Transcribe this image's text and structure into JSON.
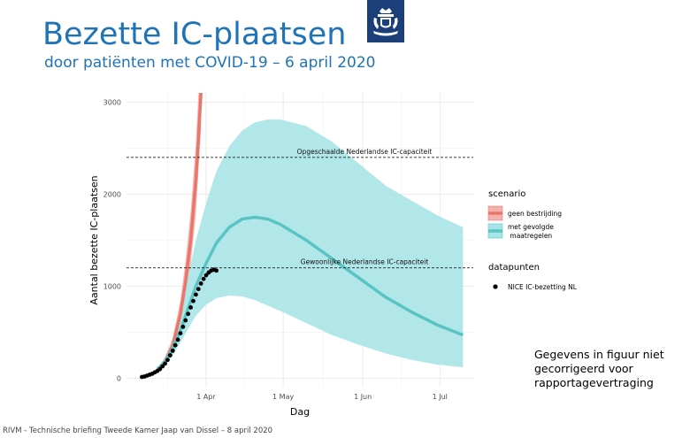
{
  "header": {
    "title": "Bezette IC-plaatsen",
    "subtitle": "door patiënten met COVID-19 – 6 april 2020"
  },
  "logo": {
    "icon": "crest-icon",
    "color": "#1c3f7a"
  },
  "chart_data": {
    "type": "line",
    "xlabel": "Dag",
    "ylabel": "Aantal bezette IC-plaatsen",
    "x_tick_labels": [
      "1 Apr",
      "1 May",
      "1 Jun",
      "1 Jul"
    ],
    "x_tick_dates": [
      "2020-04-01",
      "2020-05-01",
      "2020-06-01",
      "2020-07-01"
    ],
    "y_ticks": [
      0,
      1000,
      2000,
      3000
    ],
    "xlim": [
      "2020-03-01",
      "2020-07-14"
    ],
    "ylim": [
      -100,
      3100
    ],
    "grid": true,
    "reference_lines": [
      {
        "label": "Opgeschaalde Nederlandse IC-capaciteit",
        "y": 2400
      },
      {
        "label": "Gewoonlijke Nederlandse IC-capaciteit",
        "y": 1200
      }
    ],
    "legend": {
      "position": "right",
      "scenario_title": "scenario",
      "datapoints_title": "datapunten",
      "scenario_entries": [
        "geen bestrijding",
        "met gevolgde\n maatregelen"
      ],
      "datapoints_entry": "NICE IC-bezetting NL"
    },
    "series": [
      {
        "name": "geen bestrijding",
        "color": "#e8766d",
        "band_color": "#f3b2ad",
        "x": [
          "2020-03-13",
          "2020-03-16",
          "2020-03-19",
          "2020-03-22",
          "2020-03-24",
          "2020-03-26",
          "2020-03-28",
          "2020-03-29",
          "2020-03-30"
        ],
        "y": [
          90,
          180,
          360,
          700,
          1050,
          1500,
          2150,
          2600,
          3100
        ],
        "upper": [
          110,
          230,
          440,
          850,
          1280,
          1820,
          2550,
          3100,
          3100
        ],
        "lower": [
          75,
          150,
          300,
          580,
          870,
          1230,
          1780,
          2250,
          2700
        ]
      },
      {
        "name": "met gevolgde maatregelen",
        "color": "#5ac3c4",
        "band_color": "#a9e4e6",
        "x": [
          "2020-03-13",
          "2020-03-16",
          "2020-03-19",
          "2020-03-22",
          "2020-03-25",
          "2020-03-28",
          "2020-04-01",
          "2020-04-05",
          "2020-04-10",
          "2020-04-15",
          "2020-04-20",
          "2020-04-25",
          "2020-04-30",
          "2020-05-10",
          "2020-05-20",
          "2020-05-31",
          "2020-06-10",
          "2020-06-20",
          "2020-06-30",
          "2020-07-10"
        ],
        "y": [
          100,
          180,
          320,
          520,
          760,
          1000,
          1250,
          1470,
          1640,
          1730,
          1750,
          1730,
          1670,
          1500,
          1300,
          1080,
          880,
          720,
          580,
          470
        ],
        "upper": [
          110,
          220,
          420,
          720,
          1100,
          1500,
          1900,
          2250,
          2520,
          2690,
          2780,
          2810,
          2810,
          2740,
          2570,
          2320,
          2090,
          1930,
          1770,
          1640
        ],
        "lower": [
          90,
          140,
          250,
          390,
          540,
          680,
          800,
          870,
          900,
          890,
          850,
          790,
          730,
          600,
          470,
          360,
          270,
          200,
          150,
          120
        ]
      }
    ],
    "points": {
      "name": "NICE IC-bezetting NL",
      "color": "#000000",
      "x": [
        "2020-03-07",
        "2020-03-08",
        "2020-03-09",
        "2020-03-10",
        "2020-03-11",
        "2020-03-12",
        "2020-03-13",
        "2020-03-14",
        "2020-03-15",
        "2020-03-16",
        "2020-03-17",
        "2020-03-18",
        "2020-03-19",
        "2020-03-20",
        "2020-03-21",
        "2020-03-22",
        "2020-03-23",
        "2020-03-24",
        "2020-03-25",
        "2020-03-26",
        "2020-03-27",
        "2020-03-28",
        "2020-03-29",
        "2020-03-30",
        "2020-03-31",
        "2020-04-01",
        "2020-04-02",
        "2020-04-03",
        "2020-04-04",
        "2020-04-05"
      ],
      "y": [
        15,
        20,
        30,
        40,
        50,
        65,
        80,
        100,
        130,
        160,
        200,
        250,
        300,
        360,
        420,
        490,
        560,
        630,
        700,
        770,
        840,
        910,
        970,
        1030,
        1080,
        1120,
        1150,
        1170,
        1180,
        1170
      ]
    }
  },
  "note": "Gegevens in figuur niet gecorrigeerd voor rapportagevertraging",
  "footer": "RIVM - Technische briefing Tweede Kamer Jaap van Dissel – 8 april 2020"
}
